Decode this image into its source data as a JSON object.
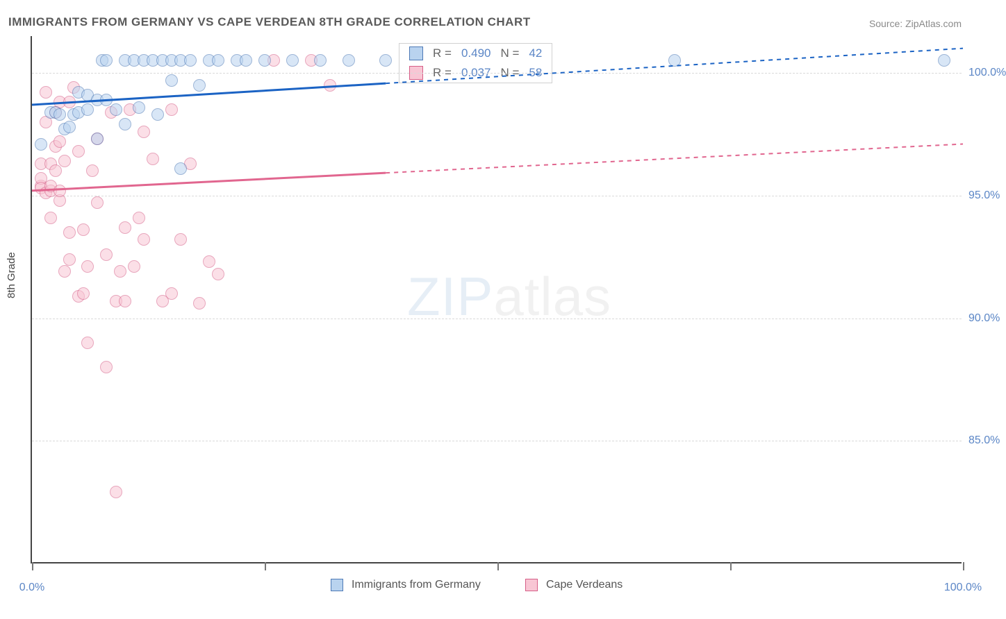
{
  "title": "IMMIGRANTS FROM GERMANY VS CAPE VERDEAN 8TH GRADE CORRELATION CHART",
  "source": "Source: ZipAtlas.com",
  "ylabel": "8th Grade",
  "chart": {
    "type": "scatter",
    "background_color": "#ffffff",
    "grid_color": "#d9d9d9",
    "grid_dash": "4,4",
    "axis_color": "#444444",
    "tick_font_color": "#5b86c6",
    "tick_font_size": 16,
    "xlim": [
      0,
      100
    ],
    "ylim": [
      80,
      101.5
    ],
    "ygrid": [
      85,
      90,
      95,
      100
    ],
    "ytick_labels": [
      "85.0%",
      "90.0%",
      "95.0%",
      "100.0%"
    ],
    "xticks": [
      0,
      50,
      100
    ],
    "xtick_labels": [
      "0.0%",
      "",
      "100.0%"
    ],
    "x_minor_ticks": [
      0,
      25,
      50,
      75,
      100
    ],
    "marker_radius": 9,
    "marker_stroke_width": 1.5,
    "trend_width_solid": 3,
    "trend_width_dash": 2,
    "trend_dash": "6,6"
  },
  "series": {
    "germany": {
      "label": "Immigrants from Germany",
      "fill": "#b9d3ef",
      "stroke": "#4d79b6",
      "fill_opacity": 0.55,
      "points": [
        [
          1,
          97.1
        ],
        [
          2,
          98.4
        ],
        [
          2.5,
          98.4
        ],
        [
          3,
          98.3
        ],
        [
          3.5,
          97.7
        ],
        [
          4,
          97.8
        ],
        [
          4.5,
          98.3
        ],
        [
          5,
          99.2
        ],
        [
          5,
          98.4
        ],
        [
          6,
          98.5
        ],
        [
          6,
          99.1
        ],
        [
          7,
          98.9
        ],
        [
          7,
          97.3
        ],
        [
          7.5,
          100.5
        ],
        [
          8,
          98.9
        ],
        [
          8,
          100.5
        ],
        [
          9,
          98.5
        ],
        [
          10,
          100.5
        ],
        [
          10,
          97.9
        ],
        [
          11,
          100.5
        ],
        [
          11.5,
          98.6
        ],
        [
          12,
          100.5
        ],
        [
          13,
          100.5
        ],
        [
          13.5,
          98.3
        ],
        [
          14,
          100.5
        ],
        [
          15,
          100.5
        ],
        [
          15,
          99.7
        ],
        [
          16,
          100.5
        ],
        [
          16,
          96.1
        ],
        [
          17,
          100.5
        ],
        [
          18,
          99.5
        ],
        [
          19,
          100.5
        ],
        [
          20,
          100.5
        ],
        [
          22,
          100.5
        ],
        [
          23,
          100.5
        ],
        [
          25,
          100.5
        ],
        [
          28,
          100.5
        ],
        [
          31,
          100.5
        ],
        [
          34,
          100.5
        ],
        [
          38,
          100.5
        ],
        [
          69,
          100.5
        ],
        [
          98,
          100.5
        ]
      ],
      "trend": {
        "color": "#1b63c4",
        "solid_to_x": 38,
        "y_at_x0": 98.7,
        "y_at_x100": 101.0
      }
    },
    "capeverde": {
      "label": "Cape Verdeans",
      "fill": "#f8c6d4",
      "stroke": "#d65e87",
      "fill_opacity": 0.55,
      "points": [
        [
          1,
          95.4
        ],
        [
          1,
          95.7
        ],
        [
          1,
          95.3
        ],
        [
          1,
          96.3
        ],
        [
          1.5,
          98.0
        ],
        [
          1.5,
          95.1
        ],
        [
          1.5,
          99.2
        ],
        [
          2,
          95.2
        ],
        [
          2,
          96.3
        ],
        [
          2,
          95.4
        ],
        [
          2,
          94.1
        ],
        [
          2.5,
          98.4
        ],
        [
          2.5,
          97.0
        ],
        [
          2.5,
          96.0
        ],
        [
          3,
          98.8
        ],
        [
          3,
          97.2
        ],
        [
          3,
          94.8
        ],
        [
          3,
          95.2
        ],
        [
          3.5,
          96.4
        ],
        [
          3.5,
          91.9
        ],
        [
          4,
          98.8
        ],
        [
          4,
          93.5
        ],
        [
          4,
          92.4
        ],
        [
          4.5,
          99.4
        ],
        [
          5,
          96.8
        ],
        [
          5,
          90.9
        ],
        [
          5.5,
          91.0
        ],
        [
          5.5,
          93.6
        ],
        [
          6,
          92.1
        ],
        [
          6,
          89.0
        ],
        [
          6.5,
          96.0
        ],
        [
          7,
          97.3
        ],
        [
          7,
          94.7
        ],
        [
          8,
          92.6
        ],
        [
          8,
          88.0
        ],
        [
          8.5,
          98.4
        ],
        [
          9,
          90.7
        ],
        [
          9,
          82.9
        ],
        [
          9.5,
          91.9
        ],
        [
          10,
          90.7
        ],
        [
          10,
          93.7
        ],
        [
          10.5,
          98.5
        ],
        [
          11,
          92.1
        ],
        [
          11.5,
          94.1
        ],
        [
          12,
          97.6
        ],
        [
          12,
          93.2
        ],
        [
          13,
          96.5
        ],
        [
          14,
          90.7
        ],
        [
          15,
          98.5
        ],
        [
          15,
          91.0
        ],
        [
          16,
          93.2
        ],
        [
          17,
          96.3
        ],
        [
          18,
          90.6
        ],
        [
          19,
          92.3
        ],
        [
          20,
          91.8
        ],
        [
          26,
          100.5
        ],
        [
          30,
          100.5
        ],
        [
          32,
          99.5
        ]
      ],
      "trend": {
        "color": "#e1668f",
        "solid_to_x": 38,
        "y_at_x0": 95.2,
        "y_at_x100": 97.1
      }
    }
  },
  "stats": {
    "rows": [
      {
        "swatch_fill": "#b9d3ef",
        "swatch_stroke": "#4d79b6",
        "R": "0.490",
        "N": "42"
      },
      {
        "swatch_fill": "#f8c6d4",
        "swatch_stroke": "#d65e87",
        "R": "0.037",
        "N": "58"
      }
    ]
  },
  "legend_bottom": [
    {
      "swatch_fill": "#b9d3ef",
      "swatch_stroke": "#4d79b6",
      "label": "Immigrants from Germany"
    },
    {
      "swatch_fill": "#f8c6d4",
      "swatch_stroke": "#d65e87",
      "label": "Cape Verdeans"
    }
  ],
  "watermark": {
    "zip": "ZIP",
    "atlas": "atlas"
  }
}
